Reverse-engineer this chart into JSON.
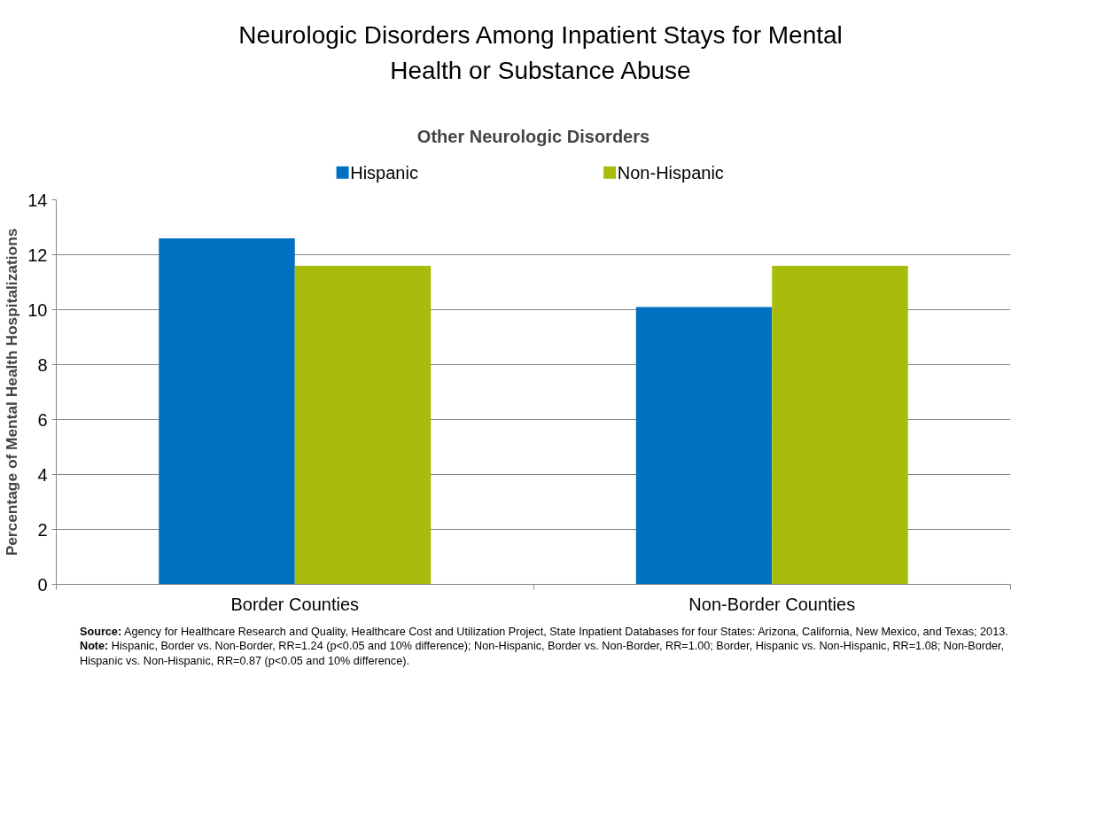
{
  "chart_data": {
    "type": "bar",
    "title": "Neurologic Disorders Among Inpatient Stays for Mental Health or Substance Abuse",
    "subtitle": "Other Neurologic Disorders",
    "ylabel": "Percentage of Mental Health Hospitalizations",
    "categories": [
      "Border Counties",
      "Non-Border Counties"
    ],
    "series": [
      {
        "name": "Hispanic",
        "color": "#0070c0",
        "values": [
          12.6,
          10.1
        ]
      },
      {
        "name": "Non-Hispanic",
        "color": "#a9bc0c",
        "values": [
          11.6,
          11.6
        ]
      }
    ],
    "ylim": [
      0,
      14
    ],
    "yticks": [
      0,
      2,
      4,
      6,
      8,
      10,
      12,
      14
    ],
    "grid": "y",
    "legend": "top",
    "annotations": [
      "Source: Agency for Healthcare Research and Quality, Healthcare Cost and Utilization Project, State Inpatient Databases for four States: Arizona, California, New Mexico, and Texas; 2013.",
      "Note: Hispanic, Border vs. Non-Border, RR=1.24 (p<0.05 and 10% difference); Non-Hispanic, Border vs. Non-Border, RR=1.00; Border, Hispanic vs. Non-Hispanic, RR=1.08; Non-Border, Hispanic vs. Non-Hispanic, RR=0.87 (p<0.05 and 10% difference)."
    ]
  }
}
